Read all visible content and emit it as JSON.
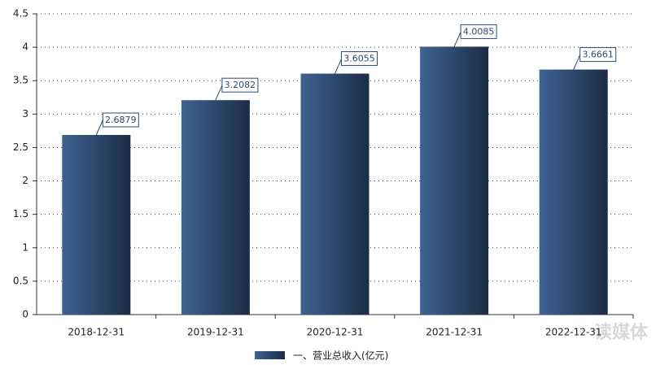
{
  "chart_data": {
    "type": "bar",
    "categories": [
      "2018-12-31",
      "2019-12-31",
      "2020-12-31",
      "2021-12-31",
      "2022-12-31"
    ],
    "series": [
      {
        "name": "一、营业总收入(亿元)",
        "color": "#2c4a70",
        "values": [
          2.6879,
          3.2082,
          3.6055,
          4.0085,
          3.6661
        ]
      }
    ],
    "ylim": [
      0,
      4.5
    ],
    "yticks": [
      0,
      0.5,
      1,
      1.5,
      2,
      2.5,
      3,
      3.5,
      4,
      4.5
    ],
    "grid": true,
    "watermark": "读媒体"
  }
}
